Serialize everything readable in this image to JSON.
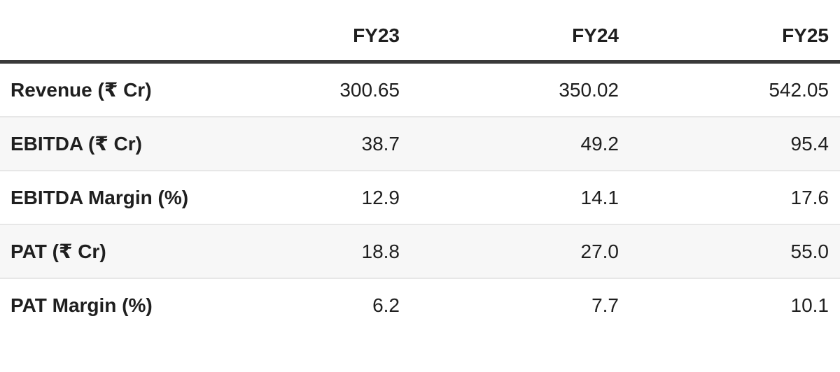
{
  "table": {
    "columns": [
      "",
      "FY23",
      "FY24",
      "FY25"
    ],
    "rows": [
      {
        "label": "Revenue (₹ Cr)",
        "values": [
          "300.65",
          "350.02",
          "542.05"
        ]
      },
      {
        "label": "EBITDA (₹ Cr)",
        "values": [
          "38.7",
          "49.2",
          "95.4"
        ]
      },
      {
        "label": "EBITDA Margin (%)",
        "values": [
          "12.9",
          "14.1",
          "17.6"
        ]
      },
      {
        "label": "PAT (₹ Cr)",
        "values": [
          "18.8",
          "27.0",
          "55.0"
        ]
      },
      {
        "label": "PAT Margin (%)",
        "values": [
          "6.2",
          "7.7",
          "10.1"
        ]
      }
    ]
  },
  "colors": {
    "header_border": "#3a3a3a",
    "row_separator": "#e7e7e7",
    "alt_row_bg": "#f7f7f7",
    "text": "#1f1f1f"
  },
  "chart_data": {
    "type": "table",
    "categories": [
      "FY23",
      "FY24",
      "FY25"
    ],
    "series": [
      {
        "name": "Revenue (₹ Cr)",
        "values": [
          300.65,
          350.02,
          542.05
        ]
      },
      {
        "name": "EBITDA (₹ Cr)",
        "values": [
          38.7,
          49.2,
          95.4
        ]
      },
      {
        "name": "EBITDA Margin (%)",
        "values": [
          12.9,
          14.1,
          17.6
        ]
      },
      {
        "name": "PAT (₹ Cr)",
        "values": [
          18.8,
          27.0,
          55.0
        ]
      },
      {
        "name": "PAT Margin (%)",
        "values": [
          6.2,
          7.7,
          10.1
        ]
      }
    ],
    "layout": {
      "header_row": true,
      "alternating_row_shading": true,
      "numeric_alignment": "right"
    }
  }
}
